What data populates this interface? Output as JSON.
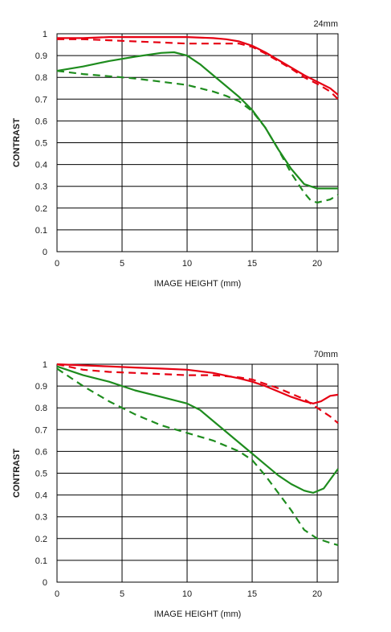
{
  "chart_data": [
    {
      "type": "line",
      "focal_label": "24mm",
      "xlabel": "IMAGE HEIGHT (mm)",
      "ylabel": "CONTRAST",
      "xlim": [
        0,
        21.6
      ],
      "ylim": [
        0,
        1
      ],
      "xticks": [
        0,
        5,
        10,
        15,
        20
      ],
      "yticks": [
        0,
        0.1,
        0.2,
        0.3,
        0.4,
        0.5,
        0.6,
        0.7,
        0.8,
        0.9,
        1
      ],
      "ytick_labels": [
        "0",
        "0.1",
        "0.2",
        "0.3",
        "0.4",
        "0.5",
        "0.6",
        "0.7",
        "0.8",
        "0.9",
        "1"
      ],
      "xtick_labels": [
        "0",
        "5",
        "10",
        "15",
        "20"
      ],
      "grid": true,
      "series": [
        {
          "color": "#e60012",
          "dash": false,
          "x": [
            0,
            2,
            4,
            6,
            8,
            10,
            12,
            13,
            14,
            15,
            16,
            17,
            18,
            19,
            20,
            21,
            21.6
          ],
          "y": [
            0.98,
            0.98,
            0.985,
            0.985,
            0.985,
            0.985,
            0.98,
            0.975,
            0.965,
            0.945,
            0.915,
            0.88,
            0.845,
            0.81,
            0.78,
            0.75,
            0.72
          ]
        },
        {
          "color": "#e60012",
          "dash": true,
          "x": [
            0,
            2,
            4,
            6,
            8,
            10,
            12,
            13,
            14,
            15,
            16,
            17,
            18,
            19,
            20,
            21,
            21.6
          ],
          "y": [
            0.975,
            0.975,
            0.97,
            0.965,
            0.96,
            0.955,
            0.955,
            0.955,
            0.955,
            0.94,
            0.91,
            0.875,
            0.84,
            0.8,
            0.77,
            0.735,
            0.7
          ]
        },
        {
          "color": "#1e8c1e",
          "dash": false,
          "x": [
            0,
            2,
            4,
            6,
            8,
            9,
            10,
            11,
            12,
            13,
            14,
            15,
            16,
            17,
            18,
            19,
            20,
            21,
            21.6
          ],
          "y": [
            0.83,
            0.85,
            0.875,
            0.895,
            0.912,
            0.915,
            0.9,
            0.86,
            0.81,
            0.76,
            0.71,
            0.65,
            0.57,
            0.47,
            0.38,
            0.31,
            0.29,
            0.29,
            0.29
          ]
        },
        {
          "color": "#1e8c1e",
          "dash": true,
          "x": [
            0,
            2,
            4,
            6,
            8,
            10,
            12,
            13,
            14,
            15,
            16,
            17,
            18,
            19,
            19.5,
            20,
            21,
            21.6
          ],
          "y": [
            0.83,
            0.815,
            0.805,
            0.795,
            0.78,
            0.765,
            0.735,
            0.715,
            0.69,
            0.645,
            0.57,
            0.47,
            0.36,
            0.27,
            0.235,
            0.225,
            0.24,
            0.26
          ]
        }
      ]
    },
    {
      "type": "line",
      "focal_label": "70mm",
      "xlabel": "IMAGE HEIGHT (mm)",
      "ylabel": "CONTRAST",
      "xlim": [
        0,
        21.6
      ],
      "ylim": [
        0,
        1
      ],
      "xticks": [
        0,
        5,
        10,
        15,
        20
      ],
      "yticks": [
        0,
        0.1,
        0.2,
        0.3,
        0.4,
        0.5,
        0.6,
        0.7,
        0.8,
        0.9,
        1
      ],
      "ytick_labels": [
        "0",
        "0.1",
        "0.2",
        "0.3",
        "0.4",
        "0.5",
        "0.6",
        "0.7",
        "0.8",
        "0.9",
        "1"
      ],
      "xtick_labels": [
        "0",
        "5",
        "10",
        "15",
        "20"
      ],
      "grid": true,
      "series": [
        {
          "color": "#e60012",
          "dash": false,
          "x": [
            0,
            2,
            4,
            6,
            8,
            10,
            12,
            14,
            15,
            16,
            17,
            18,
            19,
            19.7,
            20.3,
            21,
            21.6
          ],
          "y": [
            1.0,
            0.995,
            0.99,
            0.985,
            0.98,
            0.975,
            0.96,
            0.935,
            0.92,
            0.9,
            0.875,
            0.85,
            0.83,
            0.82,
            0.83,
            0.855,
            0.86
          ]
        },
        {
          "color": "#e60012",
          "dash": true,
          "x": [
            0,
            2,
            4,
            6,
            8,
            10,
            12,
            13,
            14,
            15,
            16,
            17,
            18,
            19,
            20,
            21,
            21.6
          ],
          "y": [
            1.0,
            0.975,
            0.965,
            0.96,
            0.955,
            0.95,
            0.95,
            0.945,
            0.94,
            0.93,
            0.91,
            0.89,
            0.865,
            0.84,
            0.8,
            0.76,
            0.73
          ]
        },
        {
          "color": "#1e8c1e",
          "dash": false,
          "x": [
            0,
            2,
            4,
            6,
            8,
            10,
            11,
            12,
            13,
            14,
            15,
            16,
            17,
            18,
            19,
            19.7,
            20.5,
            21.6
          ],
          "y": [
            0.99,
            0.95,
            0.92,
            0.88,
            0.85,
            0.82,
            0.79,
            0.74,
            0.69,
            0.64,
            0.59,
            0.54,
            0.49,
            0.45,
            0.42,
            0.41,
            0.43,
            0.52
          ]
        },
        {
          "color": "#1e8c1e",
          "dash": true,
          "x": [
            0,
            2,
            4,
            6,
            8,
            10,
            12,
            14,
            15,
            16,
            17,
            18,
            19,
            20,
            21,
            21.6
          ],
          "y": [
            0.98,
            0.9,
            0.83,
            0.77,
            0.72,
            0.685,
            0.65,
            0.6,
            0.56,
            0.49,
            0.41,
            0.33,
            0.24,
            0.2,
            0.18,
            0.17
          ]
        }
      ]
    }
  ]
}
